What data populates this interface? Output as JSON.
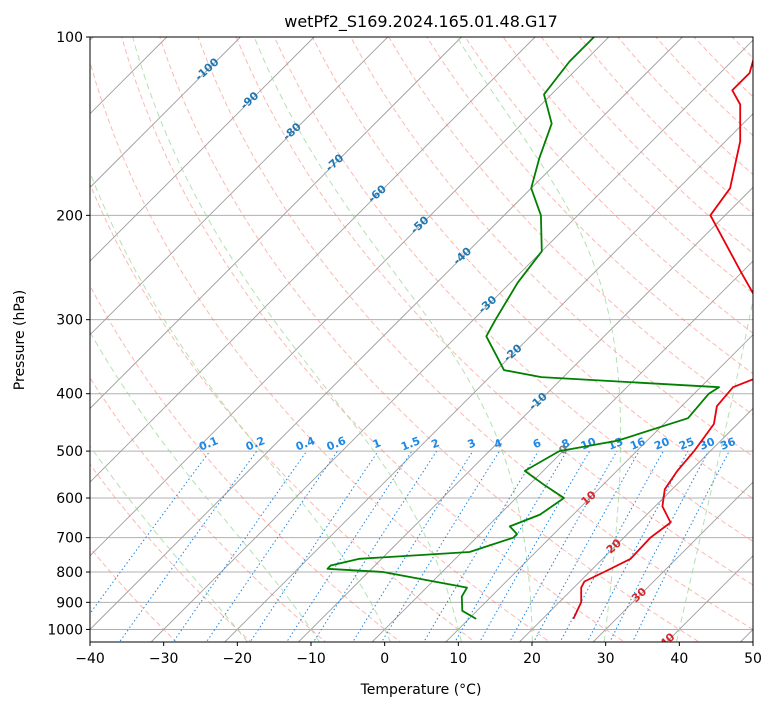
{
  "chart_data": {
    "type": "line",
    "title": "wetPf2_S169.2024.165.01.48.G17",
    "xlabel": "Temperature (°C)",
    "ylabel": "Pressure (hPa)",
    "xlim": [
      -40,
      50
    ],
    "ylim": [
      1050,
      100
    ],
    "y_scale": "log",
    "grid": true,
    "x_ticks": [
      {
        "value": -40,
        "label": "−40"
      },
      {
        "value": -30,
        "label": "−30"
      },
      {
        "value": -20,
        "label": "−20"
      },
      {
        "value": -10,
        "label": "−10"
      },
      {
        "value": 0,
        "label": "0"
      },
      {
        "value": 10,
        "label": "10"
      },
      {
        "value": 20,
        "label": "20"
      },
      {
        "value": 30,
        "label": "30"
      },
      {
        "value": 40,
        "label": "40"
      },
      {
        "value": 50,
        "label": "50"
      }
    ],
    "y_ticks": [
      {
        "value": 100,
        "label": "100"
      },
      {
        "value": 200,
        "label": "200"
      },
      {
        "value": 300,
        "label": "300"
      },
      {
        "value": 400,
        "label": "400"
      },
      {
        "value": 500,
        "label": "500"
      },
      {
        "value": 600,
        "label": "600"
      },
      {
        "value": 700,
        "label": "700"
      },
      {
        "value": 800,
        "label": "800"
      },
      {
        "value": 900,
        "label": "900"
      },
      {
        "value": 1000,
        "label": "1000"
      }
    ],
    "series": [
      {
        "color": "#e8000b",
        "values": [
          {
            "p": 960,
            "t": 24.2
          },
          {
            "p": 900,
            "t": 23.0
          },
          {
            "p": 850,
            "t": 21.0
          },
          {
            "p": 830,
            "t": 20.6
          },
          {
            "p": 800,
            "t": 22.0
          },
          {
            "p": 760,
            "t": 23.8
          },
          {
            "p": 700,
            "t": 23.6
          },
          {
            "p": 660,
            "t": 24.3
          },
          {
            "p": 620,
            "t": 21.0
          },
          {
            "p": 580,
            "t": 19.0
          },
          {
            "p": 540,
            "t": 18.2
          },
          {
            "p": 500,
            "t": 17.8
          },
          {
            "p": 450,
            "t": 16.8
          },
          {
            "p": 420,
            "t": 14.8
          },
          {
            "p": 390,
            "t": 14.4
          },
          {
            "p": 375,
            "t": 16.5
          },
          {
            "p": 365,
            "t": 18.8
          },
          {
            "p": 350,
            "t": 17.5
          },
          {
            "p": 300,
            "t": 10.0
          },
          {
            "p": 250,
            "t": 0.0
          },
          {
            "p": 200,
            "t": -12.0
          },
          {
            "p": 180,
            "t": -13.0
          },
          {
            "p": 150,
            "t": -18.0
          },
          {
            "p": 130,
            "t": -23.0
          },
          {
            "p": 123,
            "t": -26.0
          },
          {
            "p": 115,
            "t": -26.0
          },
          {
            "p": 100,
            "t": -29.5
          }
        ]
      },
      {
        "color": "#008000",
        "values": [
          {
            "p": 960,
            "t": 11.0
          },
          {
            "p": 930,
            "t": 8.0
          },
          {
            "p": 880,
            "t": 6.0
          },
          {
            "p": 850,
            "t": 5.5
          },
          {
            "p": 800,
            "t": -8.0
          },
          {
            "p": 790,
            "t": -16.0
          },
          {
            "p": 780,
            "t": -16.0
          },
          {
            "p": 760,
            "t": -13.0
          },
          {
            "p": 740,
            "t": 1.0
          },
          {
            "p": 700,
            "t": 5.0
          },
          {
            "p": 690,
            "t": 5.0
          },
          {
            "p": 670,
            "t": 3.0
          },
          {
            "p": 640,
            "t": 5.5
          },
          {
            "p": 620,
            "t": 6.0
          },
          {
            "p": 600,
            "t": 6.5
          },
          {
            "p": 570,
            "t": 2.0
          },
          {
            "p": 540,
            "t": -2.5
          },
          {
            "p": 500,
            "t": -0.5
          },
          {
            "p": 480,
            "t": 6.0
          },
          {
            "p": 440,
            "t": 12.5
          },
          {
            "p": 400,
            "t": 12.0
          },
          {
            "p": 390,
            "t": 12.5
          },
          {
            "p": 375,
            "t": -13.0
          },
          {
            "p": 365,
            "t": -19.0
          },
          {
            "p": 320,
            "t": -26.0
          },
          {
            "p": 300,
            "t": -27.0
          },
          {
            "p": 260,
            "t": -29.0
          },
          {
            "p": 230,
            "t": -30.0
          },
          {
            "p": 200,
            "t": -35.0
          },
          {
            "p": 180,
            "t": -40.0
          },
          {
            "p": 160,
            "t": -43.0
          },
          {
            "p": 140,
            "t": -46.0
          },
          {
            "p": 125,
            "t": -51.0
          },
          {
            "p": 110,
            "t": -52.0
          },
          {
            "p": 100,
            "t": -52.0
          }
        ]
      }
    ],
    "dry_adiabats": {
      "color": "#fa8072",
      "values": [
        -30,
        -20,
        -10,
        0,
        10,
        20,
        30,
        40,
        50,
        60,
        70,
        80,
        90,
        100,
        110,
        120,
        130,
        140,
        150,
        160,
        170,
        180,
        190,
        200
      ]
    },
    "moist_adiabats": {
      "color": "#98d898",
      "values": [
        -20,
        -10,
        0,
        10,
        20,
        30,
        40
      ]
    },
    "mixing_ratio_lines": {
      "color": "#1e88e5",
      "label_pressure": 500,
      "values": [
        {
          "w": 0.1,
          "label": "0.1"
        },
        {
          "w": 0.2,
          "label": "0.2"
        },
        {
          "w": 0.4,
          "label": "0.4"
        },
        {
          "w": 0.6,
          "label": "0.6"
        },
        {
          "w": 1,
          "label": "1"
        },
        {
          "w": 1.5,
          "label": "1.5"
        },
        {
          "w": 2,
          "label": "2"
        },
        {
          "w": 3,
          "label": "3"
        },
        {
          "w": 4,
          "label": "4"
        },
        {
          "w": 6,
          "label": "6"
        },
        {
          "w": 8,
          "label": "8"
        },
        {
          "w": 10,
          "label": "10"
        },
        {
          "w": 13,
          "label": "13"
        },
        {
          "w": 16,
          "label": "16"
        },
        {
          "w": 20,
          "label": "20"
        },
        {
          "w": 25,
          "label": "25"
        },
        {
          "w": 30,
          "label": "30"
        },
        {
          "w": 36,
          "label": "36"
        }
      ]
    },
    "isotherm_labels": [
      {
        "value": -100,
        "label": "-100",
        "color": "#1f77b4"
      },
      {
        "value": -90,
        "label": "-90",
        "color": "#1f77b4"
      },
      {
        "value": -80,
        "label": "-80",
        "color": "#1f77b4"
      },
      {
        "value": -70,
        "label": "-70",
        "color": "#1f77b4"
      },
      {
        "value": -60,
        "label": "-60",
        "color": "#1f77b4"
      },
      {
        "value": -50,
        "label": "-50",
        "color": "#1f77b4"
      },
      {
        "value": -40,
        "label": "-40",
        "color": "#1f77b4"
      },
      {
        "value": -30,
        "label": "-30",
        "color": "#1f77b4"
      },
      {
        "value": -20,
        "label": "-20",
        "color": "#1f77b4"
      },
      {
        "value": -10,
        "label": "-10",
        "color": "#1f77b4"
      },
      {
        "value": 0,
        "label": "0",
        "color": "#808080"
      },
      {
        "value": 10,
        "label": "10",
        "color": "#d62728"
      },
      {
        "value": 20,
        "label": "20",
        "color": "#d62728"
      },
      {
        "value": 30,
        "label": "30",
        "color": "#d62728"
      },
      {
        "value": 40,
        "label": "40",
        "color": "#d62728"
      }
    ]
  }
}
